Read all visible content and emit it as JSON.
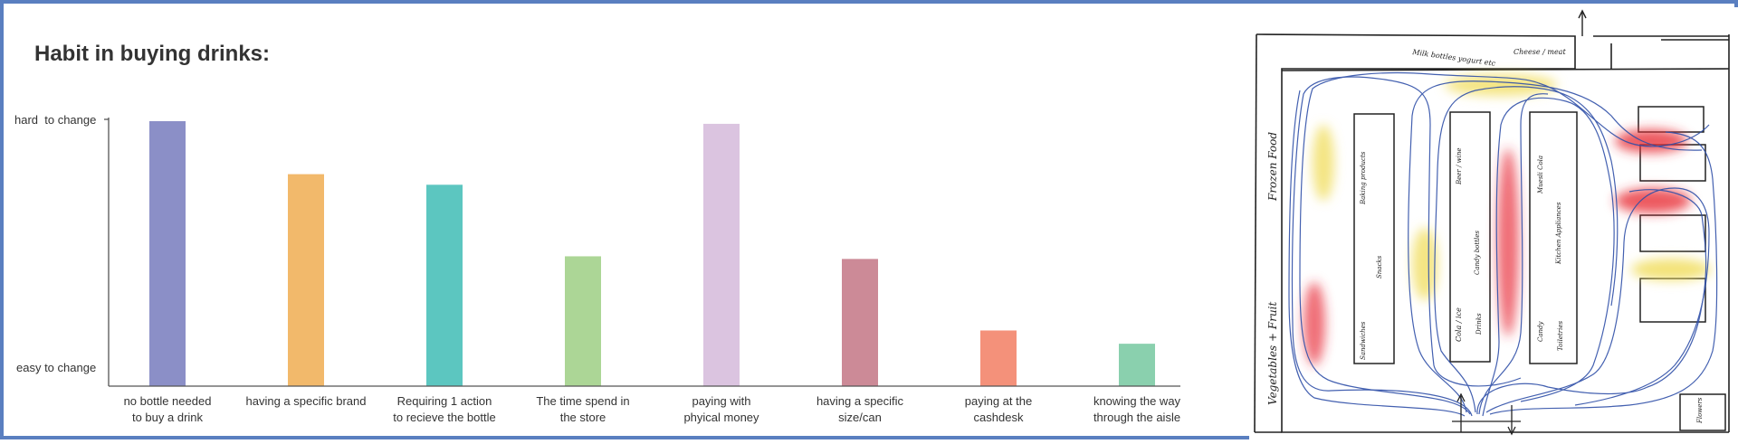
{
  "chart_data": {
    "type": "bar",
    "title": "Habit in buying drinks:",
    "y_top_label": "hard  to change",
    "y_bottom_label": "easy to change",
    "ylim": [
      0,
      100
    ],
    "grid": false,
    "categories": [
      [
        "no bottle needed",
        "to buy a drink"
      ],
      [
        "having a specific brand"
      ],
      [
        "Requiring 1 action",
        "to recieve the bottle"
      ],
      [
        "The time spend in",
        "the store"
      ],
      [
        "paying with",
        "phyical money"
      ],
      [
        "having a specific",
        "size/can"
      ],
      [
        "paying at the",
        "cashdesk"
      ],
      [
        "knowing the way",
        "through the aisle"
      ]
    ],
    "values": [
      100,
      80,
      76,
      49,
      99,
      48,
      21,
      16
    ],
    "colors": [
      "#8b8fc7",
      "#f2b96b",
      "#5cc6c0",
      "#acd696",
      "#dbc4e0",
      "#cc8a97",
      "#f4917a",
      "#8ad0ae"
    ]
  },
  "store_map": {
    "labels": [
      "Milk bottles yogurt etc",
      "Cheese / meat",
      "Frozen Food",
      "Vegetables + Fruit",
      "Baking products",
      "Snacks",
      "Sandwiches",
      "Beer / wine",
      "Candy bottles",
      "Cola / ice",
      "Drinks",
      "Muesli Cola",
      "Kitchen Appliances",
      "Candy",
      "Toiletries",
      "Flowers"
    ],
    "colors": {
      "path": "#2f4fa8",
      "hotspot_red": "#e8303a",
      "hotspot_yellow": "#f0dc58",
      "wall": "#222222"
    }
  }
}
